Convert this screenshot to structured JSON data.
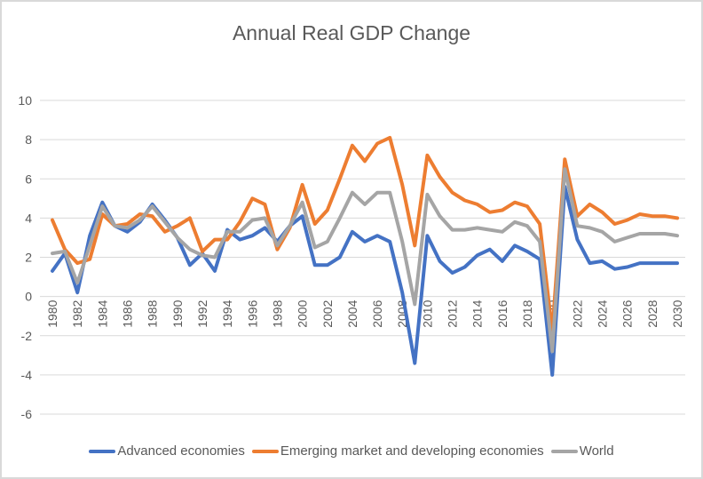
{
  "chart_data": {
    "type": "line",
    "title": "Annual Real GDP Change",
    "xlabel": "",
    "ylabel": "",
    "ylim": [
      -6,
      10
    ],
    "yticks": [
      "10",
      "8",
      "6",
      "4",
      "2",
      "0",
      "-2",
      "-4",
      "-6"
    ],
    "ytick_values": [
      10,
      8,
      6,
      4,
      2,
      0,
      -2,
      -4,
      -6
    ],
    "grid": true,
    "legend_position": "bottom",
    "x": [
      1980,
      1981,
      1982,
      1983,
      1984,
      1985,
      1986,
      1987,
      1988,
      1989,
      1990,
      1991,
      1992,
      1993,
      1994,
      1995,
      1996,
      1997,
      1998,
      1999,
      2000,
      2001,
      2002,
      2003,
      2004,
      2005,
      2006,
      2007,
      2008,
      2009,
      2010,
      2011,
      2012,
      2013,
      2014,
      2015,
      2016,
      2017,
      2018,
      2019,
      2020,
      2021,
      2022,
      2023,
      2024,
      2025,
      2026,
      2027,
      2028,
      2029,
      2030
    ],
    "xtick_labels": [
      "1980",
      "1982",
      "1984",
      "1986",
      "1988",
      "1990",
      "1992",
      "1994",
      "1996",
      "1998",
      "2000",
      "2002",
      "2004",
      "2006",
      "2008",
      "2010",
      "2012",
      "2014",
      "2016",
      "2018",
      "2020",
      "2022",
      "2024",
      "2026",
      "2028",
      "2030"
    ],
    "series": [
      {
        "name": "Advanced economies",
        "color": "#4472c4",
        "values": [
          1.3,
          2.2,
          0.2,
          3.1,
          4.8,
          3.6,
          3.3,
          3.8,
          4.7,
          3.9,
          3.0,
          1.6,
          2.2,
          1.3,
          3.4,
          2.9,
          3.1,
          3.5,
          2.8,
          3.6,
          4.1,
          1.6,
          1.6,
          2.0,
          3.3,
          2.8,
          3.1,
          2.8,
          0.2,
          -3.4,
          3.1,
          1.8,
          1.2,
          1.5,
          2.1,
          2.4,
          1.8,
          2.6,
          2.3,
          1.9,
          -4.0,
          5.6,
          2.9,
          1.7,
          1.8,
          1.4,
          1.5,
          1.7,
          1.7,
          1.7,
          1.7
        ]
      },
      {
        "name": "Emerging market and developing economies",
        "color": "#ed7d31",
        "values": [
          3.9,
          2.4,
          1.7,
          1.9,
          4.2,
          3.6,
          3.7,
          4.2,
          4.1,
          3.3,
          3.6,
          4.0,
          2.3,
          2.9,
          2.9,
          3.8,
          5.0,
          4.7,
          2.4,
          3.5,
          5.7,
          3.7,
          4.4,
          6.0,
          7.7,
          6.9,
          7.8,
          8.1,
          5.7,
          2.6,
          7.2,
          6.1,
          5.3,
          4.9,
          4.7,
          4.3,
          4.4,
          4.8,
          4.6,
          3.7,
          -1.8,
          7.0,
          4.1,
          4.7,
          4.3,
          3.7,
          3.9,
          4.2,
          4.1,
          4.1,
          4.0
        ]
      },
      {
        "name": "World",
        "color": "#a5a5a5",
        "values": [
          2.2,
          2.3,
          0.7,
          2.6,
          4.6,
          3.6,
          3.5,
          3.9,
          4.6,
          3.8,
          3.0,
          2.4,
          2.1,
          2.0,
          3.3,
          3.3,
          3.9,
          4.0,
          2.6,
          3.6,
          4.8,
          2.5,
          2.8,
          4.0,
          5.3,
          4.7,
          5.3,
          5.3,
          2.8,
          -0.4,
          5.2,
          4.1,
          3.4,
          3.4,
          3.5,
          3.4,
          3.3,
          3.8,
          3.6,
          2.8,
          -2.8,
          6.5,
          3.6,
          3.5,
          3.3,
          2.8,
          3.0,
          3.2,
          3.2,
          3.2,
          3.1
        ]
      }
    ]
  }
}
